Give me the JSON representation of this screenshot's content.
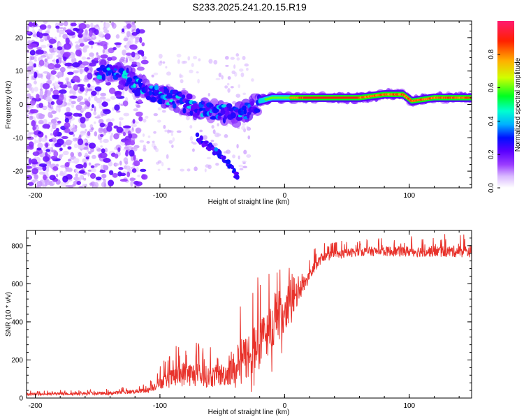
{
  "title": "S233.2025.241.20.15.R19",
  "colors": {
    "snr_line": "#e8322b",
    "axis": "#000000",
    "background": "#ffffff"
  },
  "chart_data": [
    {
      "type": "heatmap",
      "name": "spectrogram",
      "xlabel": "Height of straight line (km)",
      "ylabel": "Frequency (Hz)",
      "xlim": [
        -207,
        150
      ],
      "ylim": [
        -25,
        25
      ],
      "xticks": [
        -200,
        -100,
        0,
        100
      ],
      "yticks": [
        -20,
        -10,
        0,
        10,
        20
      ],
      "colorbar": {
        "label": "Normalized spectral amplitude",
        "range": [
          0.0,
          1.0
        ],
        "ticks": [
          0.0,
          0.2,
          0.4,
          0.6,
          0.8
        ],
        "tick_labels": [
          "0.0",
          "0.2",
          "0.4",
          "0.6",
          "0.8"
        ],
        "colormap": [
          "#ffffff",
          "#b070f0",
          "#6a00ff",
          "#0000ff",
          "#00e0ff",
          "#00ff00",
          "#ffff00",
          "#ff8000",
          "#ff0000",
          "#ff1a6e"
        ]
      },
      "main_track": [
        {
          "x": -145,
          "f": 10
        },
        {
          "x": -130,
          "f": 9
        },
        {
          "x": -115,
          "f": 5
        },
        {
          "x": -100,
          "f": 3
        },
        {
          "x": -85,
          "f": 1
        },
        {
          "x": -70,
          "f": -1
        },
        {
          "x": -55,
          "f": -2
        },
        {
          "x": -40,
          "f": -3
        },
        {
          "x": -30,
          "f": -2
        },
        {
          "x": -20,
          "f": 1
        },
        {
          "x": -10,
          "f": 2
        },
        {
          "x": 0,
          "f": 2
        },
        {
          "x": 20,
          "f": 2
        },
        {
          "x": 60,
          "f": 2
        },
        {
          "x": 80,
          "f": 3
        },
        {
          "x": 95,
          "f": 3
        },
        {
          "x": 102,
          "f": 1
        },
        {
          "x": 120,
          "f": 2
        },
        {
          "x": 150,
          "f": 2
        }
      ],
      "secondary_track": [
        {
          "x": -70,
          "f": -10
        },
        {
          "x": -55,
          "f": -14
        },
        {
          "x": -45,
          "f": -18
        },
        {
          "x": -38,
          "f": -22
        }
      ]
    },
    {
      "type": "line",
      "name": "snr",
      "xlabel": "Height of straight line (km)",
      "ylabel": "SNR (10 * v/v)",
      "xlim": [
        -207,
        150
      ],
      "ylim": [
        0,
        880
      ],
      "xticks": [
        -200,
        -100,
        0,
        100
      ],
      "yticks": [
        0,
        200,
        400,
        600,
        800
      ],
      "envelope": [
        {
          "x": -207,
          "base": 20,
          "amp": 15
        },
        {
          "x": -140,
          "base": 25,
          "amp": 20
        },
        {
          "x": -110,
          "base": 40,
          "amp": 30
        },
        {
          "x": -100,
          "base": 80,
          "amp": 80
        },
        {
          "x": -80,
          "base": 130,
          "amp": 170
        },
        {
          "x": -60,
          "base": 110,
          "amp": 140
        },
        {
          "x": -45,
          "base": 130,
          "amp": 160
        },
        {
          "x": -35,
          "base": 190,
          "amp": 300
        },
        {
          "x": -20,
          "base": 280,
          "amp": 330
        },
        {
          "x": -10,
          "base": 380,
          "amp": 300
        },
        {
          "x": 5,
          "base": 480,
          "amp": 200
        },
        {
          "x": 15,
          "base": 600,
          "amp": 120
        },
        {
          "x": 30,
          "base": 740,
          "amp": 60
        },
        {
          "x": 60,
          "base": 770,
          "amp": 60
        },
        {
          "x": 100,
          "base": 770,
          "amp": 70
        },
        {
          "x": 150,
          "base": 770,
          "amp": 80
        }
      ]
    }
  ]
}
